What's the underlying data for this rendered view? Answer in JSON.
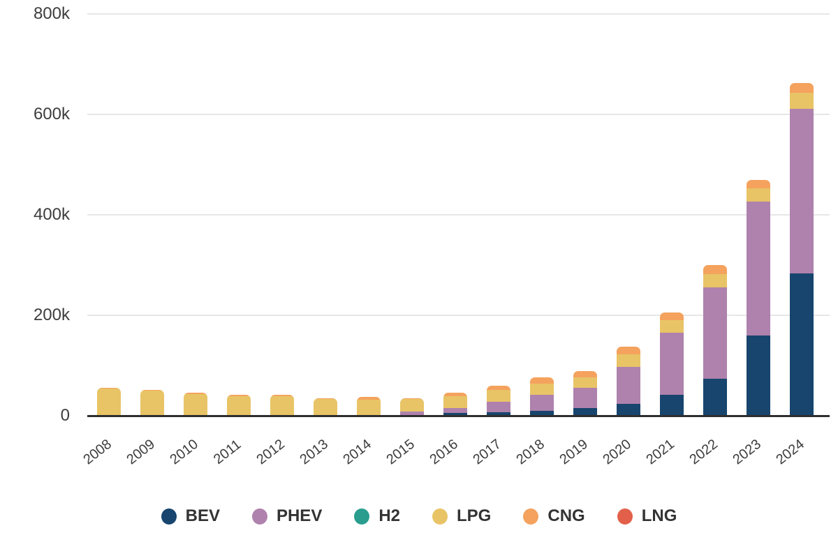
{
  "chart_data": {
    "type": "bar",
    "stacked": true,
    "title": "",
    "xlabel": "",
    "ylabel": "",
    "ylim": [
      0,
      800000
    ],
    "grid": true,
    "legend_position": "bottom",
    "categories": [
      "2008",
      "2009",
      "2010",
      "2011",
      "2012",
      "2013",
      "2014",
      "2015",
      "2016",
      "2017",
      "2018",
      "2019",
      "2020",
      "2021",
      "2022",
      "2023",
      "2024"
    ],
    "series": [
      {
        "name": "BEV",
        "color": "#17456e",
        "values": [
          0,
          0,
          0,
          0,
          0,
          0,
          0,
          0,
          5000,
          7000,
          10000,
          15000,
          23000,
          42000,
          74000,
          160000,
          283000
        ]
      },
      {
        "name": "PHEV",
        "color": "#af82ad",
        "values": [
          0,
          0,
          0,
          0,
          0,
          0,
          0,
          8000,
          10000,
          21000,
          31000,
          41000,
          74000,
          123000,
          182000,
          267000,
          328000
        ]
      },
      {
        "name": "H2",
        "color": "#2a9d8f",
        "values": [
          0,
          0,
          0,
          0,
          0,
          0,
          0,
          0,
          0,
          0,
          0,
          0,
          0,
          0,
          0,
          0,
          0
        ]
      },
      {
        "name": "LPG",
        "color": "#e8c466",
        "values": [
          54000,
          50000,
          43000,
          39000,
          39000,
          33000,
          32000,
          25000,
          24000,
          23000,
          23000,
          20000,
          25000,
          25000,
          26000,
          26000,
          32000
        ]
      },
      {
        "name": "CNG",
        "color": "#f4a25d",
        "values": [
          2000,
          2000,
          3000,
          2000,
          2000,
          2000,
          5000,
          2000,
          7000,
          9000,
          12000,
          13000,
          15000,
          16000,
          18000,
          17000,
          19000
        ]
      },
      {
        "name": "LNG",
        "color": "#e2604a",
        "values": [
          0,
          0,
          0,
          0,
          0,
          0,
          0,
          0,
          0,
          0,
          0,
          0,
          0,
          0,
          0,
          0,
          0
        ]
      }
    ],
    "yticks": [
      {
        "value": 0,
        "label": "0"
      },
      {
        "value": 200000,
        "label": "200k"
      },
      {
        "value": 400000,
        "label": "400k"
      },
      {
        "value": 600000,
        "label": "600k"
      },
      {
        "value": 800000,
        "label": "800k"
      }
    ]
  },
  "colors": {
    "background": "#ffffff",
    "gridline": "#e7e7e7",
    "axis_line": "#2e2e2e",
    "axis_text": "#3d3d3d",
    "legend_text": "#333333"
  }
}
